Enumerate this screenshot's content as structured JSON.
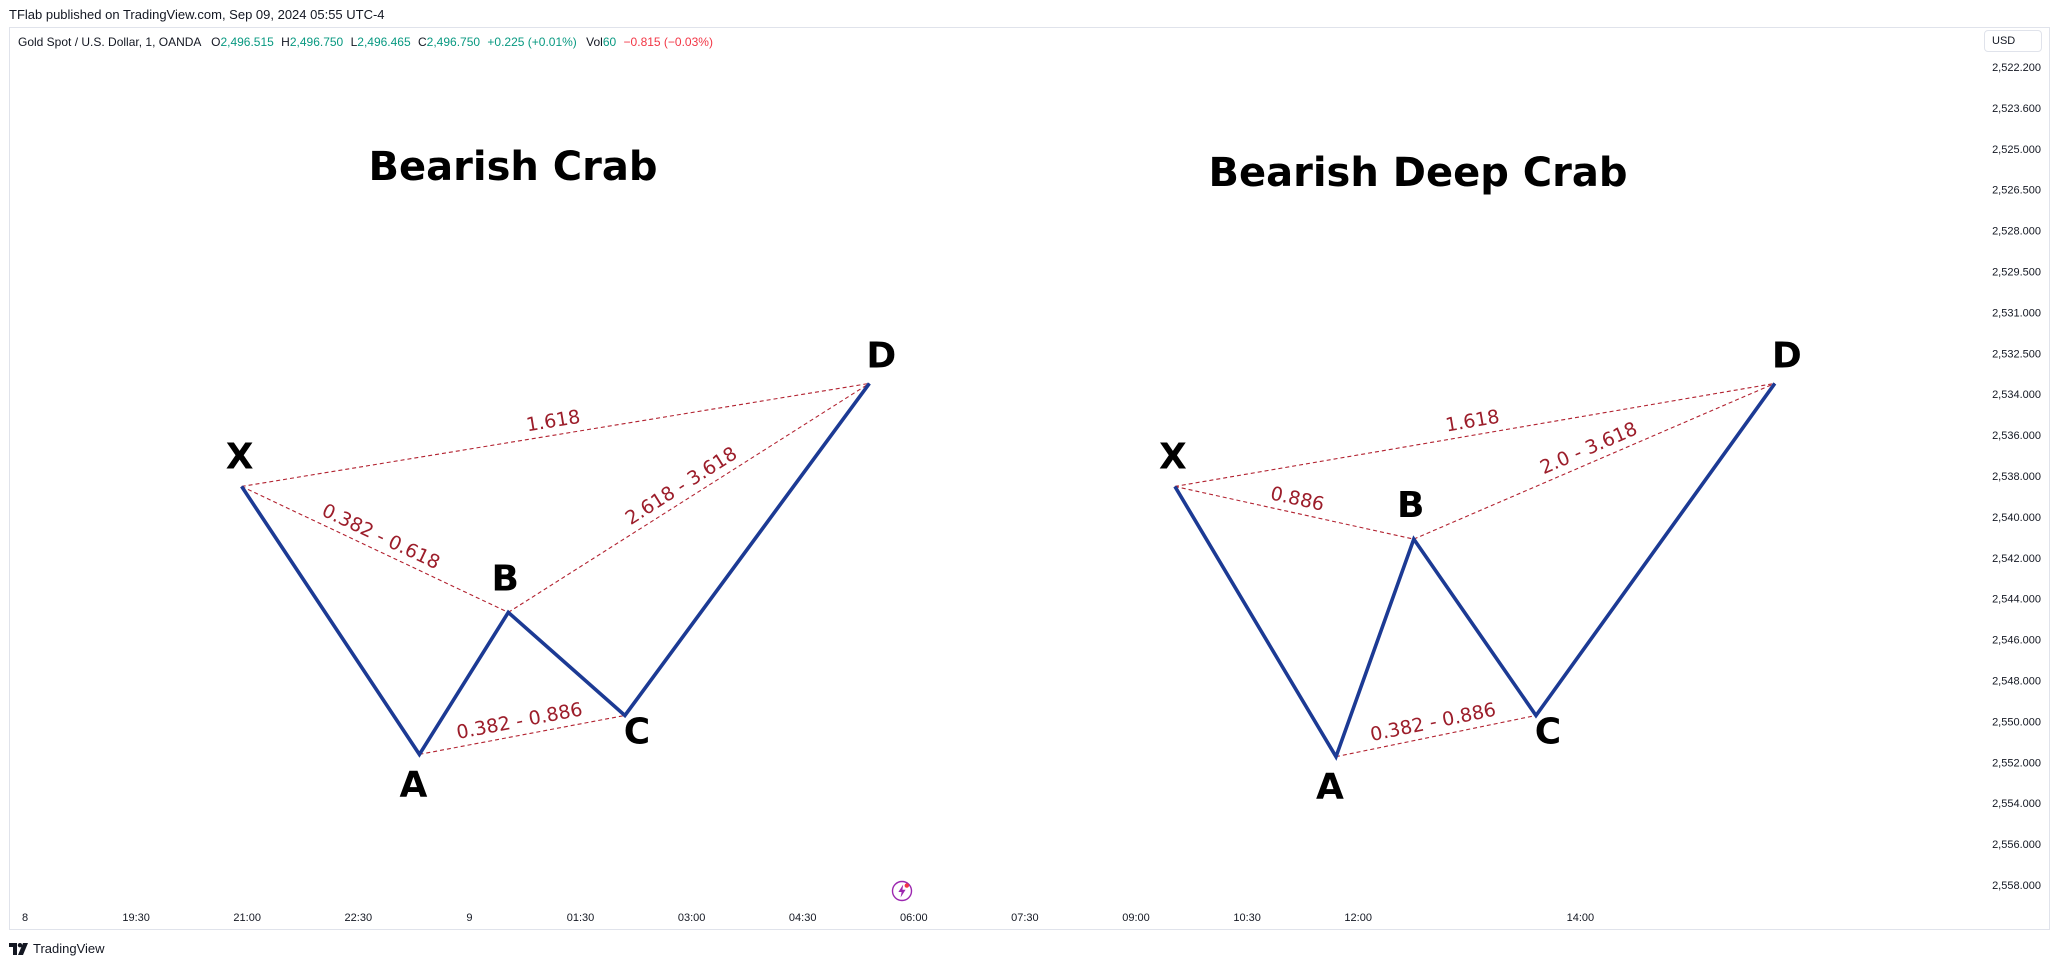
{
  "header": {
    "published": "TFlab published on TradingView.com, Sep 09, 2024 05:55 UTC-4"
  },
  "legend": {
    "symbol": "Gold Spot / U.S. Dollar, 1, OANDA",
    "open_label": "O",
    "open": "2,496.515",
    "high_label": "H",
    "high": "2,496.750",
    "low_label": "L",
    "low": "2,496.465",
    "close_label": "C",
    "close": "2,496.750",
    "change": "+0.225 (+0.01%)",
    "vol_label": "Vol",
    "vol": "60",
    "vol_change": "−0.815 (−0.03%)"
  },
  "currency": "USD",
  "footer": {
    "brand": "TradingView"
  },
  "colors": {
    "pattern_line": "#1c3a94",
    "ratio_line": "#b22230",
    "ratio_text": "#9c1d2a",
    "axis_text": "#131722"
  },
  "icons": {
    "brand_logo": "tradingview-logo-icon",
    "lightning": "lightning-icon"
  },
  "chart_data": {
    "type": "line",
    "price_axis": {
      "ticks": [
        "2,522.200",
        "2,523.600",
        "2,525.000",
        "2,526.500",
        "2,528.000",
        "2,529.500",
        "2,531.000",
        "2,532.500",
        "2,534.000",
        "2,536.000",
        "2,538.000",
        "2,540.000",
        "2,542.000",
        "2,544.000",
        "2,546.000",
        "2,548.000",
        "2,550.000",
        "2,552.000",
        "2,554.000",
        "2,556.000",
        "2,558.000"
      ],
      "inverted": true
    },
    "time_axis": {
      "ticks": [
        "8",
        "19:30",
        "21:00",
        "22:30",
        "9",
        "01:30",
        "03:00",
        "04:30",
        "06:00",
        "07:30",
        "09:00",
        "10:30",
        "12:00",
        "14:00"
      ],
      "tick_index": [
        0,
        1,
        2,
        3,
        4,
        5,
        6,
        7,
        8,
        9,
        10,
        11,
        12,
        14
      ]
    },
    "patterns": [
      {
        "title": "Bearish Crab",
        "points": [
          {
            "label": "X",
            "t": 1.95,
            "p": 2540.5
          },
          {
            "label": "A",
            "t": 3.55,
            "p": 2552.2
          },
          {
            "label": "B",
            "t": 4.35,
            "p": 2546.0
          },
          {
            "label": "C",
            "t": 5.4,
            "p": 2550.5
          },
          {
            "label": "D",
            "t": 7.6,
            "p": 2536.0
          }
        ],
        "ratios": [
          {
            "from": "X",
            "to": "D",
            "text": "1.618"
          },
          {
            "from": "X",
            "to": "B",
            "text": "0.382 - 0.618"
          },
          {
            "from": "B",
            "to": "D",
            "text": "2.618 - 3.618"
          },
          {
            "from": "A",
            "to": "C",
            "text": "0.382 - 0.886"
          }
        ]
      },
      {
        "title": "Bearish Deep Crab",
        "points": [
          {
            "label": "X",
            "t": 10.35,
            "p": 2540.5
          },
          {
            "label": "A",
            "t": 11.8,
            "p": 2552.3
          },
          {
            "label": "B",
            "t": 12.5,
            "p": 2542.8
          },
          {
            "label": "C",
            "t": 13.6,
            "p": 2550.5
          },
          {
            "label": "D",
            "t": 15.75,
            "p": 2536.0
          }
        ],
        "ratios": [
          {
            "from": "X",
            "to": "D",
            "text": "1.618"
          },
          {
            "from": "X",
            "to": "B",
            "text": "0.886"
          },
          {
            "from": "B",
            "to": "D",
            "text": "2.0 - 3.618"
          },
          {
            "from": "A",
            "to": "C",
            "text": "0.382 - 0.886"
          }
        ]
      }
    ],
    "grid": false
  }
}
